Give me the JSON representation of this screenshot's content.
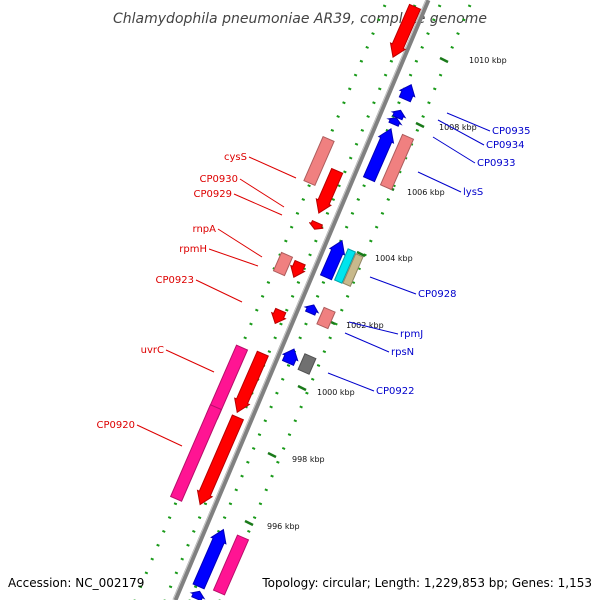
{
  "title": "Chlamydophila pneumoniae AR39, complete genome",
  "footer": {
    "accession": "Accession: NC_002179",
    "summary": "Topology: circular; Length: 1,229,853 bp; Genes: 1,153"
  },
  "colors": {
    "backbone": "#808080",
    "tick": "#1a7a1a",
    "forward_label": "#dd0000",
    "reverse_label": "#0000cc",
    "red": "#ff0000",
    "pink": "#f08080",
    "magenta": "#ff1493",
    "blue": "#0000ff",
    "cyan": "#00e5ee",
    "tan": "#c8b98c",
    "gray": "#707070"
  },
  "ticks": [
    "1010 kbp",
    "1008 kbp",
    "1006 kbp",
    "1004 kbp",
    "1002 kbp",
    "1000 kbp",
    "998 kbp",
    "996 kbp"
  ],
  "forward_labels": [
    "cysS",
    "CP0930",
    "CP0929",
    "rnpA",
    "rpmH",
    "CP0923",
    "uvrC",
    "CP0920"
  ],
  "reverse_labels": [
    "CP0935",
    "CP0934",
    "CP0933",
    "lysS",
    "CP0928",
    "rpmJ",
    "rpsN",
    "CP0922"
  ]
}
